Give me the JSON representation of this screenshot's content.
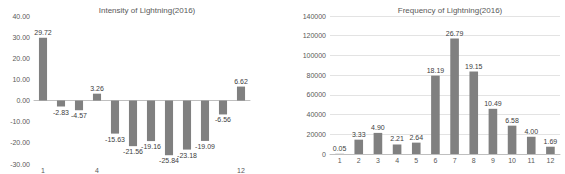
{
  "chart_data": [
    {
      "type": "bar",
      "title": "Intensity of Lightning(2016)",
      "categories": [
        "1",
        null,
        null,
        "4",
        null,
        null,
        null,
        null,
        null,
        null,
        null,
        "12"
      ],
      "values": [
        29.72,
        -2.83,
        -4.57,
        3.26,
        -15.63,
        -21.56,
        -19.16,
        -25.84,
        -23.18,
        -19.09,
        -6.56,
        6.62
      ],
      "color": "#808080",
      "ylim": [
        -30,
        40
      ],
      "yticks": [
        {
          "value": -30,
          "label": "-30.00"
        },
        {
          "value": -20,
          "label": "-20.00"
        },
        {
          "value": -10,
          "label": "-10.00"
        },
        {
          "value": 0,
          "label": "0.00"
        },
        {
          "value": 10,
          "label": "10.00"
        },
        {
          "value": 20,
          "label": "20.00"
        },
        {
          "value": 30,
          "label": "30.00"
        },
        {
          "value": 40,
          "label": "40.00"
        }
      ],
      "grid": false,
      "data_labels": true
    },
    {
      "type": "bar",
      "title": "Frequency of Lightning(2016)",
      "categories": [
        "1",
        "2",
        "3",
        "4",
        "5",
        "6",
        "7",
        "8",
        "9",
        "10",
        "11",
        "12"
      ],
      "values": [
        220,
        14550,
        21400,
        9660,
        11540,
        79500,
        117070,
        83690,
        45840,
        28750,
        17480,
        7390
      ],
      "percent_labels": [
        "0.05",
        "3.33",
        "4.90",
        "2.21",
        "2.64",
        "18.19",
        "26.79",
        "19.15",
        "10.49",
        "6.58",
        "4.00",
        "1.69"
      ],
      "color": "#808080",
      "ylim": [
        0,
        140000
      ],
      "yticks": [
        0,
        20000,
        40000,
        60000,
        80000,
        100000,
        120000,
        140000
      ],
      "grid": true,
      "data_labels": true
    }
  ]
}
